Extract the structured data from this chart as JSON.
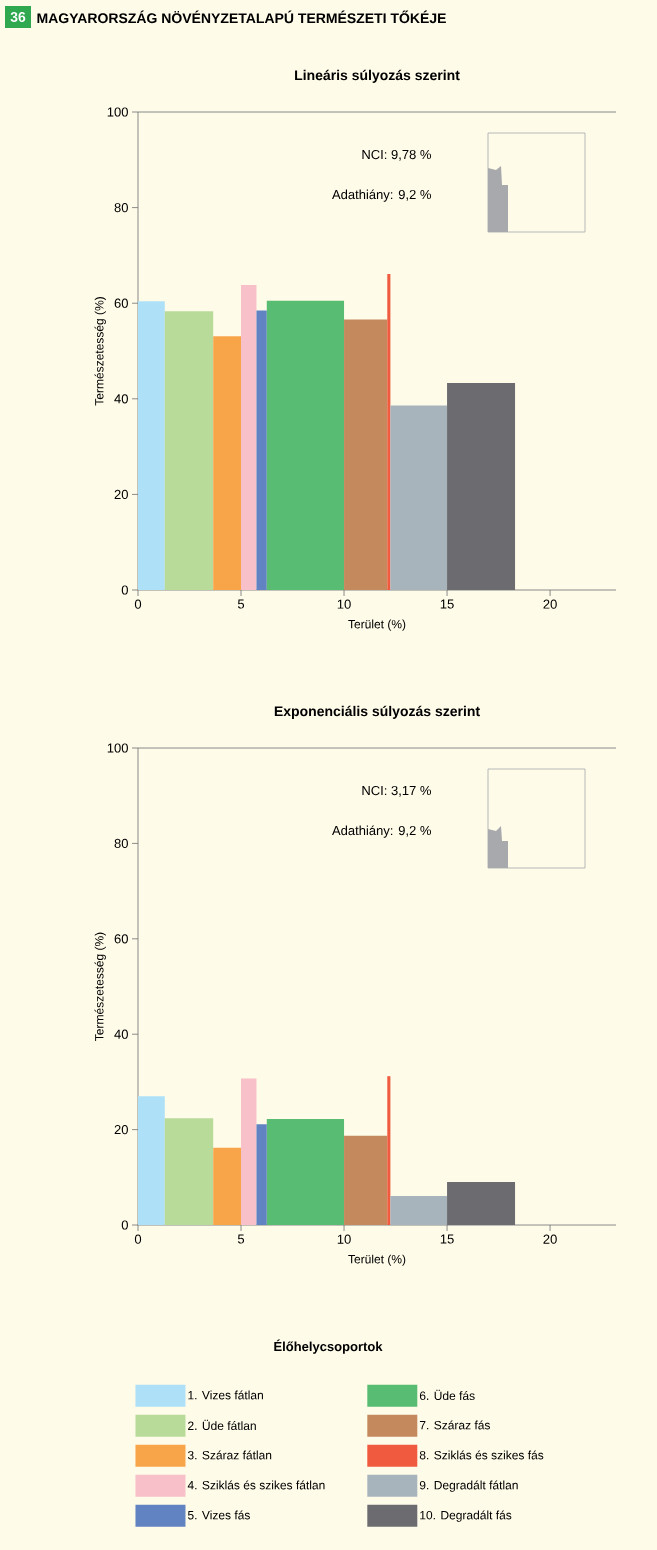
{
  "chart_data": [
    {
      "type": "histogram",
      "title": "MAGYARORSZÁG NÖVÉNYZETALAPÚ TERMÉSZETI TŐKÉJE",
      "subtitle": "Lineáris súlyozás szerint",
      "xlabel": "Terület (%)",
      "ylabel": "Természetesség (%)",
      "annotations": [
        "36",
        "NCI: 9,78 %",
        "Adathiány: 9,2 %"
      ],
      "bins": [
        0,
        1.3,
        3.65,
        5.0,
        5.75,
        6.25,
        10.0,
        12.1,
        12.25,
        15.0,
        18.3
      ],
      "values": [
        60.4,
        58.3,
        53.1,
        63.8,
        58.5,
        60.5,
        56.6,
        66.1,
        38.6,
        43.3
      ],
      "colors": [
        "#aee0f8",
        "#b8db9a",
        "#f8a54a",
        "#f8c0c8",
        "#6283c2",
        "#58bc72",
        "#c48a5e",
        "#f05a3e",
        "#a8b4bc",
        "#6c6c70"
      ],
      "xlim": [
        0,
        23.2
      ],
      "ylim": [
        0,
        100
      ],
      "xticks": [
        0,
        5,
        10,
        15,
        20
      ],
      "yticks": [
        0,
        20,
        40,
        60,
        80,
        100
      ]
    },
    {
      "type": "histogram",
      "subtitle": "Exponenciális súlyozás szerint",
      "xlabel": "Terület (%)",
      "ylabel": "Természetesség (%)",
      "annotations": [
        "NCI: 3,17 %",
        "Adathiány: 9,2 %"
      ],
      "bins": [
        0,
        1.3,
        3.65,
        5.0,
        5.75,
        6.25,
        10.0,
        12.1,
        12.25,
        15.0,
        18.3
      ],
      "series": [
        {
          "name": "1. Vizes fátlan",
          "color": "#aee0f8",
          "values": [
            27.0,
            null,
            null,
            null,
            null,
            null,
            null,
            null,
            null,
            null
          ]
        },
        {
          "name": "2. Üde fátlan",
          "color": "#b8db9a",
          "values": [
            null,
            22.4,
            null,
            null,
            null,
            null,
            null,
            null,
            null,
            null
          ]
        },
        {
          "name": "3. Száraz fátlan",
          "color": "#f8a54a",
          "values": [
            null,
            null,
            16.2,
            null,
            null,
            null,
            null,
            null,
            null,
            null
          ]
        },
        {
          "name": "4. Sziklás és szikes fátlan",
          "color": "#f8c0c8",
          "values": [
            null,
            null,
            null,
            30.7,
            null,
            null,
            null,
            null,
            null,
            null
          ]
        },
        {
          "name": "5. Vizes fás",
          "color": "#6283c2",
          "values": [
            null,
            null,
            null,
            null,
            21.1,
            null,
            null,
            null,
            null,
            null
          ]
        },
        {
          "name": "6. Üde fás",
          "color": "#58bc72",
          "values": [
            null,
            null,
            null,
            null,
            null,
            22.2,
            null,
            null,
            null,
            null
          ]
        },
        {
          "name": "7. Száraz fás",
          "color": "#c48a5e",
          "values": [
            null,
            null,
            null,
            null,
            null,
            null,
            18.7,
            null,
            null,
            null
          ]
        },
        {
          "name": "8. Sziklás és szikes fás",
          "color": "#f05a3e",
          "values": [
            null,
            null,
            null,
            null,
            null,
            null,
            null,
            31.2,
            null,
            null
          ]
        },
        {
          "name": "9. Degradált fátlan",
          "color": "#a8b4bc",
          "values": [
            null,
            null,
            null,
            null,
            null,
            null,
            null,
            null,
            6.1,
            null
          ]
        },
        {
          "name": "10. Degradált fás",
          "color": "#6c6c70",
          "values": [
            null,
            null,
            null,
            null,
            null,
            null,
            null,
            null,
            null,
            9.0
          ]
        }
      ],
      "legend": "bottom",
      "legend_title": "Élőhelycsoportok",
      "xlim": [
        0,
        23.2
      ],
      "ylim": [
        0,
        100
      ],
      "xticks": [
        0,
        5,
        10,
        15,
        20
      ],
      "yticks": [
        0,
        20,
        40,
        60,
        80,
        100
      ]
    }
  ]
}
